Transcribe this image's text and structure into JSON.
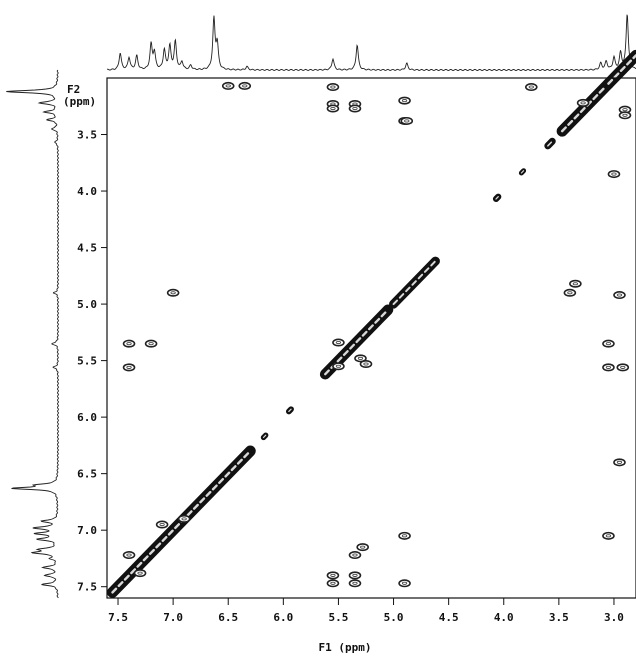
{
  "chart_data": {
    "type": "2d-nmr-contour",
    "x_axis": {
      "label": "F1 (ppm)",
      "range": [
        7.6,
        2.8
      ],
      "ticks": [
        "7.5",
        "7.0",
        "6.5",
        "6.0",
        "5.5",
        "5.0",
        "4.5",
        "4.0",
        "3.5",
        "3.0"
      ]
    },
    "y_axis": {
      "label_line1": "F2",
      "label_line2": "(ppm)",
      "range": [
        3.0,
        7.6
      ],
      "ticks": [
        "3.5",
        "4.0",
        "4.5",
        "5.0",
        "5.5",
        "6.0",
        "6.5",
        "7.0",
        "7.5"
      ]
    },
    "diagonal_segments": [
      {
        "from": 7.55,
        "to": 6.3,
        "weight": 1.0
      },
      {
        "from": 6.18,
        "to": 6.16,
        "weight": 0.3
      },
      {
        "from": 5.95,
        "to": 5.93,
        "weight": 0.35
      },
      {
        "from": 5.62,
        "to": 5.05,
        "weight": 0.95
      },
      {
        "from": 5.0,
        "to": 4.62,
        "weight": 0.75
      },
      {
        "from": 4.07,
        "to": 4.05,
        "weight": 0.4
      },
      {
        "from": 3.84,
        "to": 3.82,
        "weight": 0.25
      },
      {
        "from": 3.6,
        "to": 3.56,
        "weight": 0.5
      },
      {
        "from": 3.47,
        "to": 3.05,
        "weight": 1.0
      },
      {
        "from": 3.05,
        "to": 2.8,
        "weight": 1.0
      }
    ],
    "cross_peaks": [
      [
        7.4,
        5.35
      ],
      [
        7.4,
        5.56
      ],
      [
        7.0,
        4.9
      ],
      [
        5.55,
        3.08
      ],
      [
        5.55,
        3.23
      ],
      [
        5.55,
        3.27
      ],
      [
        5.35,
        3.23
      ],
      [
        5.35,
        3.27
      ],
      [
        4.9,
        3.38
      ],
      [
        4.9,
        3.2
      ],
      [
        3.05,
        5.35
      ],
      [
        3.05,
        5.56
      ],
      [
        3.05,
        7.05
      ],
      [
        2.92,
        5.56
      ],
      [
        3.0,
        3.85
      ],
      [
        3.4,
        4.9
      ],
      [
        3.35,
        4.82
      ],
      [
        2.95,
        4.92
      ],
      [
        2.9,
        3.28
      ],
      [
        2.9,
        3.33
      ],
      [
        5.55,
        7.4
      ],
      [
        5.55,
        7.47
      ],
      [
        5.35,
        7.4
      ],
      [
        5.35,
        7.47
      ],
      [
        4.9,
        7.05
      ],
      [
        4.9,
        7.47
      ],
      [
        5.5,
        5.34
      ],
      [
        5.5,
        5.55
      ],
      [
        5.3,
        5.48
      ],
      [
        5.25,
        5.53
      ],
      [
        7.4,
        7.22
      ],
      [
        7.3,
        7.38
      ],
      [
        7.1,
        6.95
      ],
      [
        6.9,
        6.9
      ],
      [
        6.5,
        3.07
      ],
      [
        3.75,
        3.08
      ],
      [
        7.2,
        5.35
      ],
      [
        5.35,
        7.22
      ],
      [
        5.28,
        7.15
      ],
      [
        4.88,
        3.38
      ],
      [
        6.35,
        3.07
      ],
      [
        3.28,
        3.22
      ],
      [
        2.95,
        6.4
      ]
    ],
    "top_projection_peaks": [
      [
        7.48,
        0.3
      ],
      [
        7.4,
        0.22
      ],
      [
        7.33,
        0.25
      ],
      [
        7.2,
        0.45
      ],
      [
        7.17,
        0.3
      ],
      [
        7.08,
        0.35
      ],
      [
        7.03,
        0.42
      ],
      [
        6.98,
        0.5
      ],
      [
        6.92,
        0.14
      ],
      [
        6.84,
        0.08
      ],
      [
        6.63,
        0.9
      ],
      [
        6.6,
        0.45
      ],
      [
        6.33,
        0.06
      ],
      [
        5.55,
        0.2
      ],
      [
        5.33,
        0.45
      ],
      [
        4.88,
        0.12
      ],
      [
        3.12,
        0.12
      ],
      [
        3.07,
        0.15
      ],
      [
        3.0,
        0.22
      ],
      [
        2.94,
        0.3
      ],
      [
        2.88,
        1.0
      ]
    ],
    "left_projection_peaks": [
      [
        3.12,
        1.0
      ],
      [
        3.22,
        0.35
      ],
      [
        3.3,
        0.25
      ],
      [
        3.37,
        0.2
      ],
      [
        3.45,
        0.12
      ],
      [
        3.57,
        0.06
      ],
      [
        4.9,
        0.08
      ],
      [
        5.35,
        0.12
      ],
      [
        5.56,
        0.09
      ],
      [
        6.63,
        0.85
      ],
      [
        6.6,
        0.35
      ],
      [
        6.92,
        0.3
      ],
      [
        6.98,
        0.45
      ],
      [
        7.03,
        0.4
      ],
      [
        7.08,
        0.38
      ],
      [
        7.17,
        0.33
      ],
      [
        7.2,
        0.45
      ],
      [
        7.25,
        0.12
      ],
      [
        7.33,
        0.28
      ],
      [
        7.4,
        0.25
      ],
      [
        7.48,
        0.3
      ]
    ]
  }
}
